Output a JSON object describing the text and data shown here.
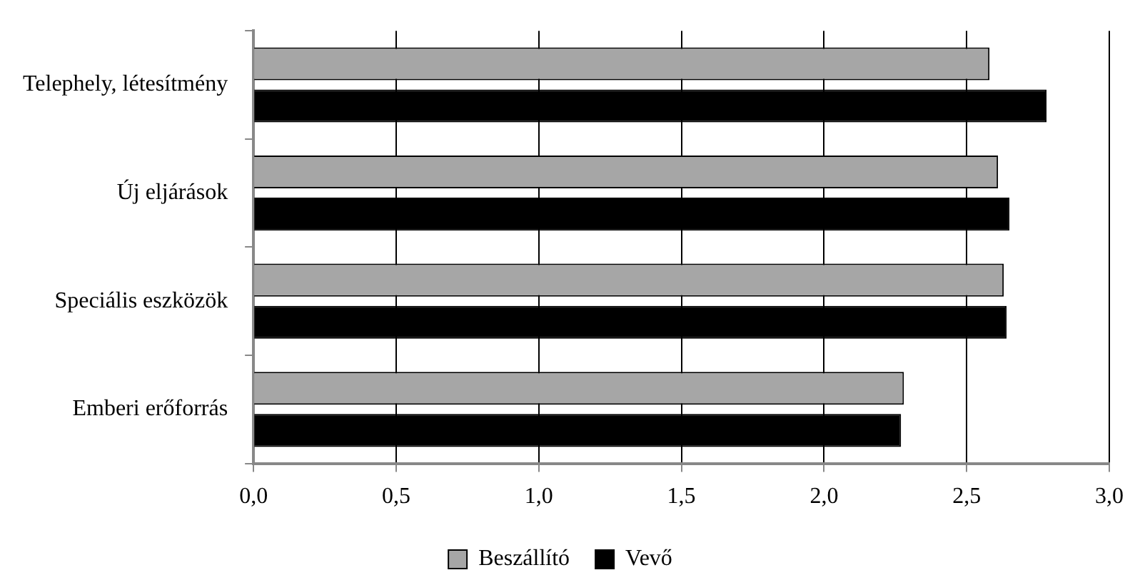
{
  "chart_data": {
    "type": "bar",
    "orientation": "horizontal",
    "categories": [
      "Telephely, létesítmény",
      "Új eljárások",
      "Speciális eszközök",
      "Emberi erőforrás"
    ],
    "series": [
      {
        "name": "Beszállító",
        "color": "#a6a6a6",
        "values": [
          2.58,
          2.61,
          2.63,
          2.28
        ]
      },
      {
        "name": "Vevő",
        "color": "#000000",
        "values": [
          2.78,
          2.65,
          2.64,
          2.27
        ]
      }
    ],
    "xlim": [
      0,
      3
    ],
    "xticks": [
      {
        "value": 0,
        "label": "0,0"
      },
      {
        "value": 0.5,
        "label": "0,5"
      },
      {
        "value": 1,
        "label": "1,0"
      },
      {
        "value": 1.5,
        "label": "1,5"
      },
      {
        "value": 2,
        "label": "2,0"
      },
      {
        "value": 2.5,
        "label": "2,5"
      },
      {
        "value": 3,
        "label": "3,0"
      }
    ],
    "grid": "x",
    "legend": "bottom"
  }
}
